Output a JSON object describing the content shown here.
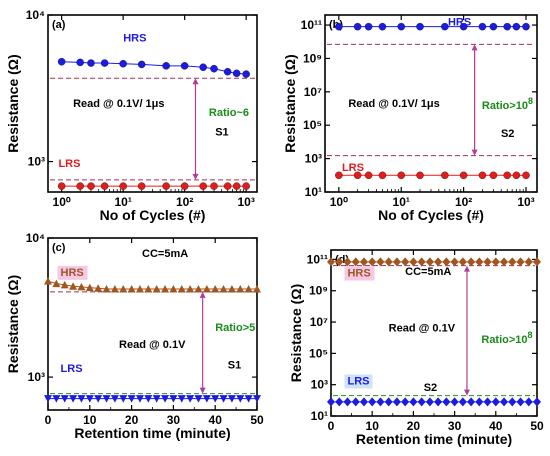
{
  "chart_data": [
    {
      "panel": "(a)",
      "type": "scatter",
      "xscale": "log",
      "yscale": "log",
      "xlabel": "No of Cycles (#)",
      "ylabel": "Resistance (Ω)",
      "xlim": [
        0.6,
        1500
      ],
      "ylim": [
        620,
        10000
      ],
      "xticks": [
        1,
        10,
        100,
        1000
      ],
      "xtick_labels": [
        "10⁰",
        "10¹",
        "10²",
        "10³"
      ],
      "yticks": [
        1000,
        10000
      ],
      "ytick_labels": [
        "10³",
        "10⁴"
      ],
      "series": [
        {
          "name": "HRS",
          "color": "#1c1ce0",
          "marker": "circle",
          "x": [
            1,
            2,
            3,
            5,
            10,
            20,
            50,
            100,
            200,
            300,
            500,
            700,
            1000
          ],
          "y": [
            4800,
            4750,
            4700,
            4700,
            4650,
            4600,
            4500,
            4500,
            4400,
            4300,
            4100,
            4000,
            3950
          ]
        },
        {
          "name": "LRS",
          "color": "#e01c1c",
          "marker": "circle",
          "x": [
            1,
            2,
            3,
            5,
            10,
            20,
            50,
            100,
            200,
            300,
            500,
            700,
            1000
          ],
          "y": [
            680,
            680,
            680,
            680,
            680,
            680,
            680,
            680,
            680,
            680,
            680,
            680,
            680
          ]
        }
      ],
      "ref_lines": [
        3700,
        750
      ],
      "ratio_arrow": {
        "x": 150,
        "y_top": 3700,
        "y_bottom": 750
      },
      "annotations": [
        {
          "text": "HRS",
          "color": "#1c1ce0",
          "at": "hrs"
        },
        {
          "text": "LRS",
          "color": "#e01c1c",
          "at": "lrs"
        },
        {
          "text": "Read @ 0.1V/ 1μs",
          "color": "#000000",
          "at": "read"
        },
        {
          "text": "Ratio~6",
          "color": "#188c18",
          "at": "ratio"
        },
        {
          "text": "S1",
          "color": "#000000",
          "at": "sample"
        }
      ]
    },
    {
      "panel": "(b)",
      "type": "scatter",
      "xscale": "log",
      "yscale": "log",
      "xlabel": "No of Cycles (#)",
      "ylabel": "Resistance (Ω)",
      "xlim": [
        0.6,
        1500
      ],
      "ylim": [
        10,
        400000000000
      ],
      "xticks": [
        1,
        10,
        100,
        1000
      ],
      "xtick_labels": [
        "10⁰",
        "10¹",
        "10²",
        "10³"
      ],
      "yticks": [
        10,
        1000,
        100000,
        10000000,
        1000000000,
        100000000000
      ],
      "ytick_labels": [
        "10¹",
        "10³",
        "10⁵",
        "10⁷",
        "10⁹",
        "10¹¹"
      ],
      "series": [
        {
          "name": "HRS",
          "color": "#1c1ce0",
          "marker": "circle",
          "x": [
            1,
            2,
            3,
            5,
            10,
            20,
            50,
            100,
            200,
            300,
            500,
            700,
            1000
          ],
          "y": [
            80000000000,
            80000000000,
            80000000000,
            80000000000,
            80000000000,
            80000000000,
            80000000000,
            80000000000,
            80000000000,
            80000000000,
            80000000000,
            80000000000,
            80000000000
          ]
        },
        {
          "name": "LRS",
          "color": "#e01c1c",
          "marker": "circle",
          "x": [
            1,
            2,
            3,
            5,
            10,
            20,
            50,
            100,
            200,
            300,
            500,
            700,
            1000
          ],
          "y": [
            100,
            100,
            100,
            100,
            100,
            100,
            100,
            100,
            100,
            100,
            100,
            100,
            100
          ]
        }
      ],
      "ref_lines": [
        7000000000,
        1500
      ],
      "ratio_arrow": {
        "x": 150,
        "y_top": 7000000000,
        "y_bottom": 1500
      },
      "annotations": [
        {
          "text": "HRS",
          "color": "#1c1ce0",
          "at": "hrs"
        },
        {
          "text": "LRS",
          "color": "#e01c1c",
          "at": "lrs"
        },
        {
          "text": "Read @ 0.1V/ 1μs",
          "color": "#000000",
          "at": "read"
        },
        {
          "text": "Ratio>10",
          "sup": "8",
          "color": "#188c18",
          "at": "ratio"
        },
        {
          "text": "S2",
          "color": "#000000",
          "at": "sample"
        }
      ]
    },
    {
      "panel": "(c)",
      "type": "scatter",
      "xscale": "linear",
      "yscale": "log",
      "xlabel": "Retention time (minute)",
      "ylabel": "Resistance (Ω)",
      "xlim": [
        0,
        50
      ],
      "ylim": [
        580,
        10000
      ],
      "xticks": [
        0,
        10,
        20,
        30,
        40,
        50
      ],
      "xtick_labels": [
        "0",
        "10",
        "20",
        "30",
        "40",
        "50"
      ],
      "yticks": [
        1000,
        10000
      ],
      "ytick_labels": [
        "10³",
        "10⁴"
      ],
      "series": [
        {
          "name": "HRS",
          "color": "#a0561e",
          "marker": "triangle-up",
          "x": [
            0,
            2,
            4,
            6,
            8,
            10,
            12,
            14,
            16,
            18,
            20,
            22,
            24,
            26,
            28,
            30,
            32,
            34,
            36,
            38,
            40,
            42,
            44,
            46,
            48,
            50
          ],
          "y": [
            4900,
            4700,
            4600,
            4500,
            4450,
            4400,
            4350,
            4300,
            4300,
            4300,
            4300,
            4300,
            4300,
            4300,
            4300,
            4300,
            4300,
            4300,
            4300,
            4300,
            4300,
            4300,
            4300,
            4300,
            4300,
            4300
          ]
        },
        {
          "name": "LRS",
          "color": "#1c1ce0",
          "marker": "triangle-down",
          "x": [
            0,
            2,
            4,
            6,
            8,
            10,
            12,
            14,
            16,
            18,
            20,
            22,
            24,
            26,
            28,
            30,
            32,
            34,
            36,
            38,
            40,
            42,
            44,
            46,
            48,
            50
          ],
          "y": [
            700,
            700,
            700,
            700,
            700,
            700,
            700,
            700,
            700,
            700,
            700,
            700,
            700,
            700,
            700,
            700,
            700,
            700,
            700,
            700,
            700,
            700,
            700,
            700,
            700,
            700
          ]
        }
      ],
      "ref_lines": [
        4100,
        760
      ],
      "ratio_arrow": {
        "x": 37,
        "y_top": 4100,
        "y_bottom": 760
      },
      "annotations": [
        {
          "text": "HRS",
          "color": "#a0561e",
          "at": "hrs"
        },
        {
          "text": "LRS",
          "color": "#1c1ce0",
          "at": "lrs"
        },
        {
          "text": "CC=5mA",
          "color": "#000000",
          "at": "cc"
        },
        {
          "text": "Read @ 0.1V",
          "color": "#000000",
          "at": "read"
        },
        {
          "text": "Ratio>5",
          "color": "#188c18",
          "at": "ratio"
        },
        {
          "text": "S1",
          "color": "#000000",
          "at": "sample"
        }
      ]
    },
    {
      "panel": "(d)",
      "type": "scatter",
      "xscale": "linear",
      "yscale": "log",
      "xlabel": "Retention time (minute)",
      "ylabel": "Resistance (Ω)",
      "xlim": [
        0,
        50
      ],
      "ylim": [
        10,
        400000000000
      ],
      "xticks": [
        0,
        10,
        20,
        30,
        40,
        50
      ],
      "xtick_labels": [
        "0",
        "10",
        "20",
        "30",
        "40",
        "50"
      ],
      "yticks": [
        10,
        1000,
        100000,
        10000000,
        1000000000,
        100000000000
      ],
      "ytick_labels": [
        "10¹",
        "10³",
        "10⁵",
        "10⁷",
        "10⁹",
        "10¹¹"
      ],
      "series": [
        {
          "name": "HRS",
          "color": "#a0561e",
          "marker": "diamond",
          "x": [
            0,
            2,
            4,
            6,
            8,
            10,
            12,
            14,
            16,
            18,
            20,
            22,
            24,
            26,
            28,
            30,
            32,
            34,
            36,
            38,
            40,
            42,
            44,
            46,
            48,
            50
          ],
          "y": [
            70000000000,
            70000000000,
            70000000000,
            70000000000,
            70000000000,
            70000000000,
            70000000000,
            70000000000,
            70000000000,
            70000000000,
            70000000000,
            70000000000,
            70000000000,
            70000000000,
            70000000000,
            70000000000,
            70000000000,
            70000000000,
            70000000000,
            70000000000,
            70000000000,
            70000000000,
            70000000000,
            70000000000,
            70000000000,
            70000000000
          ]
        },
        {
          "name": "LRS",
          "color": "#1c1ce0",
          "marker": "diamond",
          "x": [
            0,
            2,
            4,
            6,
            8,
            10,
            12,
            14,
            16,
            18,
            20,
            22,
            24,
            26,
            28,
            30,
            32,
            34,
            36,
            38,
            40,
            42,
            44,
            46,
            48,
            50
          ],
          "y": [
            80,
            80,
            80,
            80,
            80,
            80,
            80,
            80,
            80,
            80,
            80,
            80,
            80,
            80,
            80,
            80,
            80,
            80,
            80,
            80,
            80,
            80,
            80,
            80,
            80,
            80
          ]
        }
      ],
      "ref_lines": [
        40000000000,
        200
      ],
      "ratio_arrow": {
        "x": 33,
        "y_top": 40000000000,
        "y_bottom": 200
      },
      "annotations": [
        {
          "text": "HRS",
          "color": "#a0561e",
          "at": "hrs"
        },
        {
          "text": "LRS",
          "color": "#1c1ce0",
          "at": "lrs"
        },
        {
          "text": "CC=5mA",
          "color": "#000000",
          "at": "cc"
        },
        {
          "text": "Read @ 0.1V",
          "color": "#000000",
          "at": "read"
        },
        {
          "text": "Ratio>10",
          "sup": "8",
          "color": "#188c18",
          "at": "ratio"
        },
        {
          "text": "S2",
          "color": "#000000",
          "at": "sample"
        }
      ]
    }
  ]
}
